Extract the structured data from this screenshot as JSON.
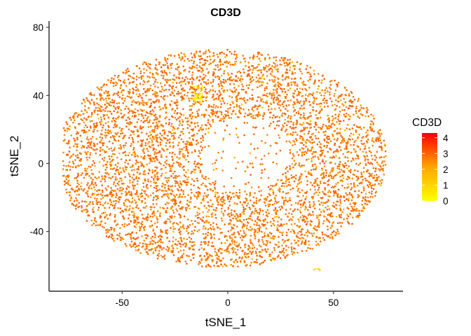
{
  "chart_data": {
    "type": "scatter",
    "title": "CD3D",
    "xlabel": "tSNE_1",
    "ylabel": "tSNE_2",
    "xlim": [
      -85,
      83
    ],
    "ylim": [
      -75,
      83
    ],
    "x_ticks": [
      -50,
      0,
      50
    ],
    "y_ticks": [
      -40,
      0,
      40,
      80
    ],
    "x_tick_labels": [
      "-50",
      "0",
      "50"
    ],
    "y_tick_labels": [
      "-40",
      "0",
      "40",
      "80"
    ],
    "grid": false,
    "legend": {
      "title": "CD3D",
      "placement": "right",
      "breaks": [
        0,
        1,
        2,
        3,
        4
      ],
      "labels": [
        "0",
        "1",
        "2",
        "3",
        "4"
      ],
      "range": [
        0,
        4.3
      ],
      "low_color": "#FFFF00",
      "high_color": "#FF0000"
    },
    "point_cloud": {
      "n_points": 5200,
      "shape": "ring-shaped cluster",
      "center": [
        -3,
        3
      ],
      "semi_axes": [
        78,
        64
      ],
      "typical_expression": [
        2.4,
        3.2
      ],
      "high_expression_cluster": {
        "x": [
          -16,
          -12
        ],
        "y": [
          36,
          46
        ],
        "value": 0.3
      },
      "low_expression_spot": {
        "x": [
          40,
          44
        ],
        "y": [
          -63,
          -62
        ],
        "value": 0.8
      }
    }
  }
}
